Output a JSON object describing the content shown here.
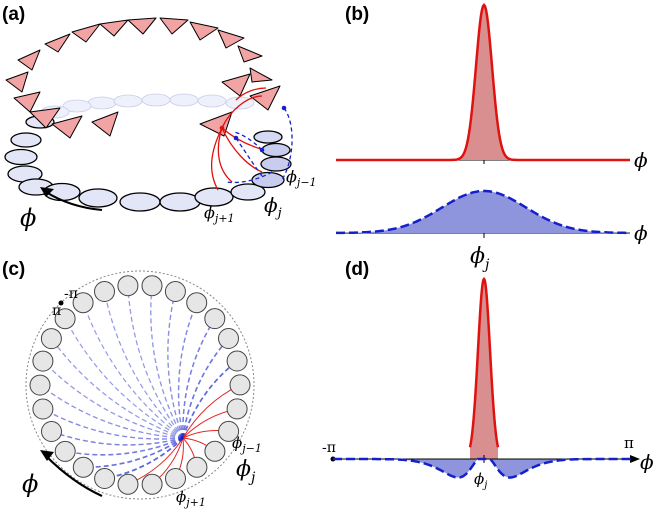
{
  "panels": {
    "a": {
      "label": "(a)",
      "phi": "ϕ",
      "phi_j": "ϕ",
      "sub_j": "j",
      "phi_jm1": "ϕ",
      "sub_jm1": "j−1",
      "phi_jp1": "ϕ",
      "sub_jp1": "j+1"
    },
    "b": {
      "label": "(b)",
      "phi_top": "ϕ",
      "phi_bottom": "ϕ",
      "phi_j": "ϕ",
      "sub_j": "j"
    },
    "c": {
      "label": "(c)",
      "pi": "π",
      "minus_pi": "-π",
      "phi": "ϕ",
      "phi_j": "ϕ",
      "sub_j": "j",
      "phi_jm1": "ϕ",
      "sub_jm1": "j−1",
      "phi_jp1": "ϕ",
      "sub_jp1": "j+1"
    },
    "d": {
      "label": "(d)",
      "minus_pi": "-π",
      "pi": "π",
      "phi": "ϕ",
      "phi_j": "ϕ",
      "sub_j": "j"
    }
  },
  "colors": {
    "excitatory_line": "#e0120f",
    "excitatory_fill": "#d98f8f",
    "inhibitory_line": "#1521c8",
    "inhibitory_fill": "#8f95dd",
    "triangle_fill": "#f2a3a3",
    "circle_fill": "#e3e6f7",
    "node_fill": "#e6e6e6"
  }
}
